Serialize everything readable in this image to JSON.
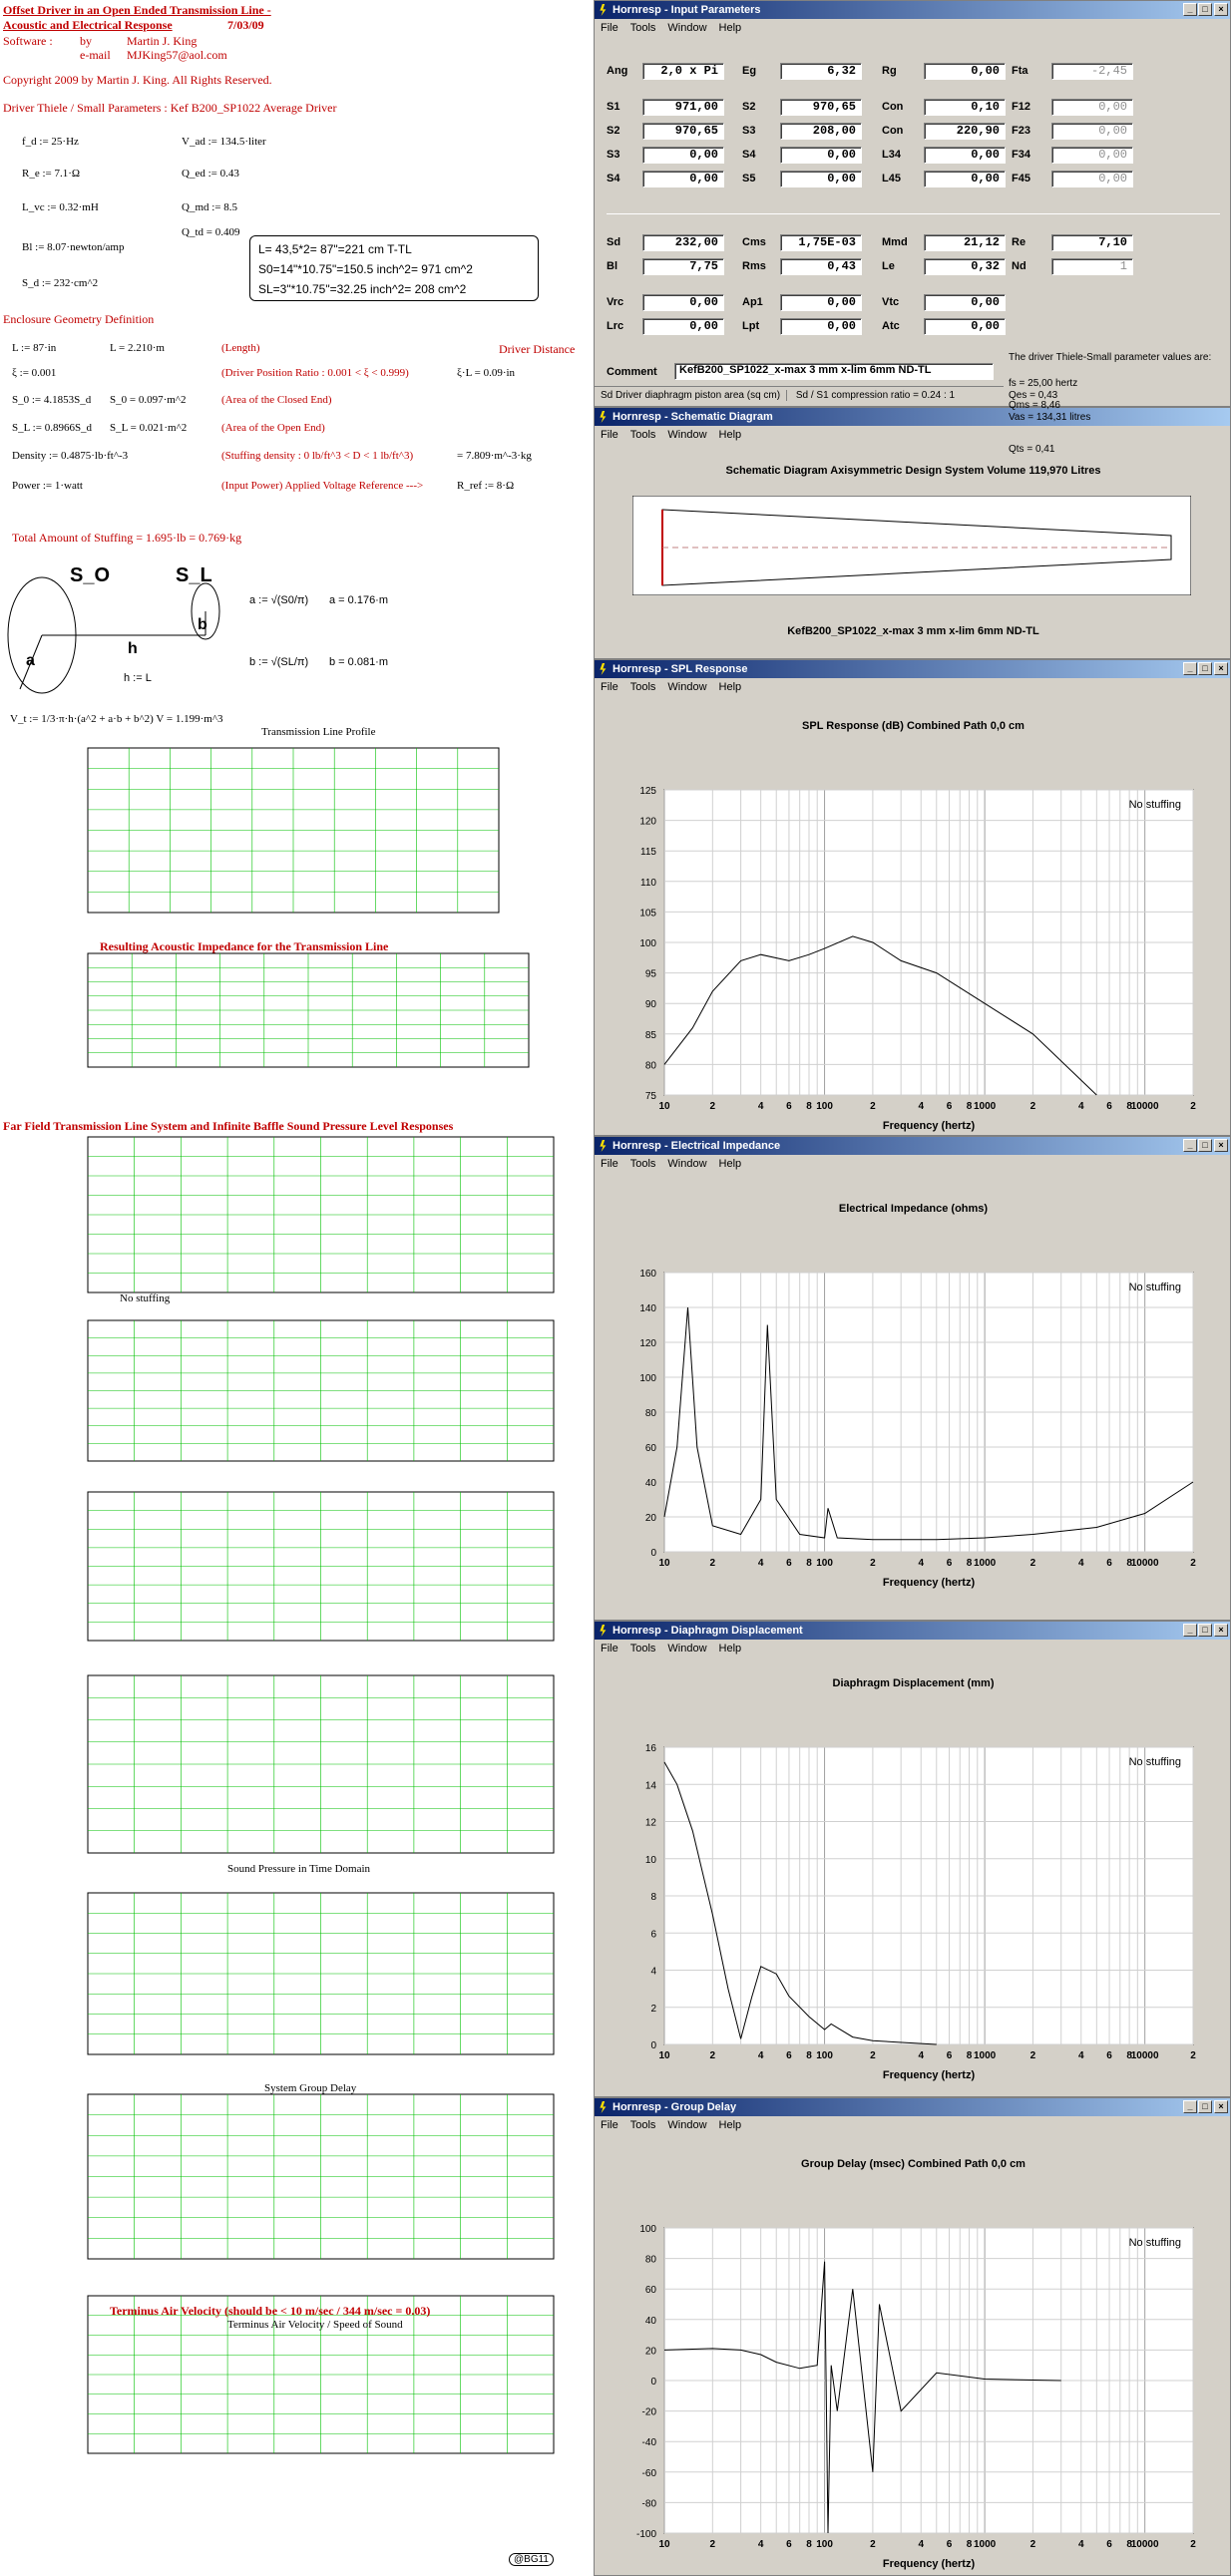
{
  "left": {
    "title1": "Offset Driver in an Open Ended Transmission Line -",
    "title2": "Acoustic and Electrical Response",
    "date": "7/03/09",
    "software_label": "Software :",
    "by_label": "by",
    "author": "Martin J. King",
    "email_label": "e-mail",
    "email": "MJKing57@aol.com",
    "copyright": "Copyright 2009 by Martin J. King. All Rights Reserved.",
    "driver_heading": "Driver Thiele / Small Parameters : Kef B200_SP1022 Average Driver",
    "params_left": [
      "f_d := 25·Hz",
      "R_e := 7.1·Ω",
      "L_vc := 0.32·mH",
      "Bl := 8.07·newton/amp",
      "S_d := 232·cm^2"
    ],
    "params_right": [
      "V_ad := 134.5·liter",
      "Q_ed := 0.43",
      "Q_md := 8.5",
      "Q_td = 0.409"
    ],
    "note_box": [
      "L= 43,5*2= 87\"=221 cm       T-TL",
      "S0=14\"*10.75\"=150.5 inch^2= 971 cm^2",
      "SL=3\"*10.75\"=32.25 inch^2= 208 cm^2"
    ],
    "enclosure_heading": "Enclosure Geometry Definition",
    "driver_distance": "Driver Distance",
    "geom": [
      {
        "a": "L := 87·in",
        "b": "L = 2.210·m",
        "c": "(Length)",
        "d": ""
      },
      {
        "a": "ξ := 0.001",
        "b": "",
        "c": "(Driver Position Ratio : 0.001 < ξ < 0.999)",
        "d": "ξ·L = 0.09·in"
      },
      {
        "a": "S_0 := 4.1853S_d",
        "b": "S_0 = 0.097·m^2",
        "c": "(Area of the Closed End)",
        "d": ""
      },
      {
        "a": "S_L := 0.8966S_d",
        "b": "S_L = 0.021·m^2",
        "c": "(Area of the Open End)",
        "d": ""
      },
      {
        "a": "Density := 0.4875·lb·ft^-3",
        "b": "",
        "c": "(Stuffing density : 0 lb/ft^3 < D < 1 lb/ft^3)",
        "d": "= 7.809·m^-3·kg"
      },
      {
        "a": "Power := 1·watt",
        "b": "",
        "c": "(Input Power)   Applied Voltage Reference --->",
        "d": "R_ref := 8·Ω"
      }
    ],
    "stuffing_total": "Total Amount of Stuffing    = 1.695·lb = 0.769·kg",
    "diagram": {
      "s0": "S_O",
      "sl": "S_L",
      "a": "a",
      "b": "b",
      "h": "h",
      "hl": "h := L",
      "a_eq": "a = 0.176·m",
      "b_eq": "b = 0.081·m",
      "a_def": "a := √(S0/π)",
      "b_def": "b := √(SL/π)"
    },
    "volume_eq": "V_t := 1/3·π·h·(a^2 + a·b + b^2)     V = 1.199·m^3",
    "profile_title": "Transmission Line Profile",
    "impedance_title": "Resulting Acoustic Impedance for the Transmission Line",
    "farfield_title": "Far Field Transmission Line System and Infinite Baffle Sound Pressure Level Responses",
    "no_stuffing": "No stuffing",
    "time_title": "Sound Pressure in Time Domain",
    "group_title": "System Group Delay",
    "velocity_title": "Terminus Air Velocity (should be < 10 m/sec / 344 m/sec = 0.03)",
    "velocity_sub": "Terminus Air Velocity / Speed of Sound",
    "badge": "@BG11"
  },
  "input_params": {
    "title": "Hornresp - Input Parameters",
    "menu": [
      "File",
      "Tools",
      "Window",
      "Help"
    ],
    "rows": [
      [
        [
          "Ang",
          "2,0 x Pi",
          0
        ],
        [
          "Eg",
          "6,32",
          0
        ],
        [
          "Rg",
          "0,00",
          0
        ],
        [
          "Fta",
          "-2,45",
          1
        ]
      ],
      [
        [
          "S1",
          "971,00",
          0
        ],
        [
          "S2",
          "970,65",
          0
        ],
        [
          "Con",
          "0,10",
          0
        ],
        [
          "F12",
          "0,00",
          1
        ]
      ],
      [
        [
          "S2",
          "970,65",
          0
        ],
        [
          "S3",
          "208,00",
          0
        ],
        [
          "Con",
          "220,90",
          0
        ],
        [
          "F23",
          "0,00",
          1
        ]
      ],
      [
        [
          "S3",
          "0,00",
          0
        ],
        [
          "S4",
          "0,00",
          0
        ],
        [
          "L34",
          "0,00",
          0
        ],
        [
          "F34",
          "0,00",
          1
        ]
      ],
      [
        [
          "S4",
          "0,00",
          0
        ],
        [
          "S5",
          "0,00",
          0
        ],
        [
          "L45",
          "0,00",
          0
        ],
        [
          "F45",
          "0,00",
          1
        ]
      ],
      [
        [
          "Sd",
          "232,00",
          0
        ],
        [
          "Cms",
          "1,75E-03",
          0
        ],
        [
          "Mmd",
          "21,12",
          0
        ],
        [
          "Re",
          "7,10",
          0
        ]
      ],
      [
        [
          "Bl",
          "7,75",
          0
        ],
        [
          "Rms",
          "0,43",
          0
        ],
        [
          "Le",
          "0,32",
          0
        ],
        [
          "Nd",
          "1",
          1
        ]
      ],
      [
        [
          "Vrc",
          "0,00",
          0
        ],
        [
          "Ap1",
          "0,00",
          0
        ],
        [
          "Vtc",
          "0,00",
          0
        ]
      ],
      [
        [
          "Lrc",
          "0,00",
          0
        ],
        [
          "Lpt",
          "0,00",
          0
        ],
        [
          "Atc",
          "0,00",
          0
        ]
      ]
    ],
    "comment_label": "Comment",
    "comment": "KefB200_SP1022_x-max 3 mm x-lim 6mm ND-TL",
    "ts_heading": "The driver Thiele-Small parameter values are:",
    "ts_values": [
      "fs = 25,00 hertz",
      "Qes = 0,43",
      "Qms = 8,46",
      "Vas = 134,31 litres"
    ],
    "qts": "Qts = 0,41",
    "status1": "Sd   Driver diaphragm piston area  (sq cm)",
    "status2": "Sd / S1 compression ratio = 0.24 : 1"
  },
  "schematic": {
    "title": "Hornresp - Schematic Diagram",
    "menu": [
      "File",
      "Tools",
      "Window",
      "Help"
    ],
    "heading": "Schematic Diagram    Axisymmetric Design    System Volume 119,970 Litres",
    "caption": "KefB200_SP1022_x-max 3 mm x-lim 6mm ND-TL"
  },
  "spl": {
    "title": "Hornresp - SPL Response",
    "menu": [
      "File",
      "Tools",
      "Window",
      "Help"
    ],
    "chart_title": "SPL Response (dB)   Combined   Path 0,0 cm",
    "legend": "No stuffing",
    "xlabel": "Frequency (hertz)",
    "yticks": [
      "125",
      "120",
      "115",
      "110",
      "105",
      "100",
      "95",
      "90",
      "85",
      "80",
      "75"
    ],
    "xticks": [
      "10",
      "2",
      "4",
      "6",
      "8",
      "100",
      "2",
      "4",
      "6",
      "8",
      "1000",
      "2",
      "4",
      "6",
      "8",
      "10000",
      "2"
    ]
  },
  "impedance": {
    "title": "Hornresp - Electrical Impedance",
    "menu": [
      "File",
      "Tools",
      "Window",
      "Help"
    ],
    "chart_title": "Electrical Impedance (ohms)",
    "legend": "No stuffing",
    "xlabel": "Frequency (hertz)",
    "yticks": [
      "160",
      "140",
      "120",
      "100",
      "80",
      "60",
      "40",
      "20",
      "0"
    ],
    "xticks": [
      "10",
      "2",
      "4",
      "6",
      "8",
      "100",
      "2",
      "4",
      "6",
      "8",
      "1000",
      "2",
      "4",
      "6",
      "8",
      "10000",
      "2"
    ]
  },
  "displacement": {
    "title": "Hornresp - Diaphragm Displacement",
    "menu": [
      "File",
      "Tools",
      "Window",
      "Help"
    ],
    "chart_title": "Diaphragm Displacement (mm)",
    "legend": "No stuffing",
    "xlabel": "Frequency (hertz)",
    "yticks": [
      "16",
      "14",
      "12",
      "10",
      "8",
      "6",
      "4",
      "2",
      "0"
    ],
    "xticks": [
      "10",
      "2",
      "4",
      "6",
      "8",
      "100",
      "2",
      "4",
      "6",
      "8",
      "1000",
      "2",
      "4",
      "6",
      "8",
      "10000",
      "2"
    ]
  },
  "group": {
    "title": "Hornresp - Group Delay",
    "menu": [
      "File",
      "Tools",
      "Window",
      "Help"
    ],
    "chart_title": "Group Delay (msec)   Combined   Path 0,0 cm",
    "legend": "No stuffing",
    "xlabel": "Frequency (hertz)",
    "yticks": [
      "100",
      "80",
      "60",
      "40",
      "20",
      "0",
      "-20",
      "-40",
      "-60",
      "-80",
      "-100"
    ],
    "xticks": [
      "10",
      "2",
      "4",
      "6",
      "8",
      "100",
      "2",
      "4",
      "6",
      "8",
      "1000",
      "2",
      "4",
      "6",
      "8",
      "10000",
      "2"
    ]
  },
  "chart_data": [
    {
      "type": "line",
      "title": "SPL Response (dB)   Combined   Path 0,0 cm",
      "xlabel": "Frequency (hertz)",
      "ylabel": "",
      "xscale": "log",
      "xlim": [
        10,
        20000
      ],
      "ylim": [
        75,
        125
      ],
      "legend": "top-right",
      "x": [
        10,
        15,
        20,
        30,
        40,
        60,
        80,
        100,
        150,
        200,
        300,
        500,
        1000,
        2000,
        5000
      ],
      "series": [
        {
          "name": "No stuffing",
          "values": [
            80,
            86,
            92,
            97,
            98,
            97,
            98,
            99,
            101,
            100,
            97,
            95,
            90,
            85,
            75
          ]
        }
      ]
    },
    {
      "type": "line",
      "title": "Electrical Impedance (ohms)",
      "xlabel": "Frequency (hertz)",
      "ylabel": "",
      "xscale": "log",
      "xlim": [
        10,
        20000
      ],
      "ylim": [
        0,
        160
      ],
      "legend": "top-right",
      "x": [
        10,
        12,
        14,
        16,
        20,
        30,
        40,
        44,
        50,
        70,
        100,
        105,
        120,
        200,
        500,
        1000,
        2000,
        5000,
        10000,
        20000
      ],
      "series": [
        {
          "name": "No stuffing",
          "values": [
            20,
            60,
            140,
            60,
            15,
            10,
            30,
            130,
            30,
            10,
            8,
            25,
            8,
            7,
            7,
            8,
            10,
            14,
            22,
            40
          ]
        }
      ]
    },
    {
      "type": "line",
      "title": "Diaphragm Displacement (mm)",
      "xlabel": "Frequency (hertz)",
      "ylabel": "",
      "xscale": "log",
      "xlim": [
        10,
        20000
      ],
      "ylim": [
        0,
        16
      ],
      "legend": "top-right",
      "x": [
        10,
        12,
        15,
        20,
        25,
        30,
        35,
        40,
        50,
        60,
        80,
        100,
        110,
        150,
        200,
        500
      ],
      "series": [
        {
          "name": "No stuffing",
          "values": [
            15.2,
            14,
            11.5,
            7,
            3,
            0.3,
            2.5,
            4.2,
            3.8,
            2.6,
            1.5,
            0.8,
            1.1,
            0.4,
            0.2,
            0
          ]
        }
      ]
    },
    {
      "type": "line",
      "title": "Group Delay (msec)   Combined   Path 0,0 cm",
      "xlabel": "Frequency (hertz)",
      "ylabel": "",
      "xscale": "log",
      "xlim": [
        10,
        20000
      ],
      "ylim": [
        -100,
        100
      ],
      "legend": "top-right",
      "x": [
        10,
        20,
        30,
        40,
        50,
        70,
        90,
        100,
        105,
        110,
        120,
        150,
        200,
        220,
        300,
        500,
        1000,
        3000
      ],
      "series": [
        {
          "name": "No stuffing",
          "values": [
            20,
            21,
            20,
            17,
            12,
            8,
            10,
            78,
            -100,
            10,
            -20,
            60,
            -60,
            50,
            -20,
            5,
            1,
            0
          ]
        }
      ]
    }
  ]
}
